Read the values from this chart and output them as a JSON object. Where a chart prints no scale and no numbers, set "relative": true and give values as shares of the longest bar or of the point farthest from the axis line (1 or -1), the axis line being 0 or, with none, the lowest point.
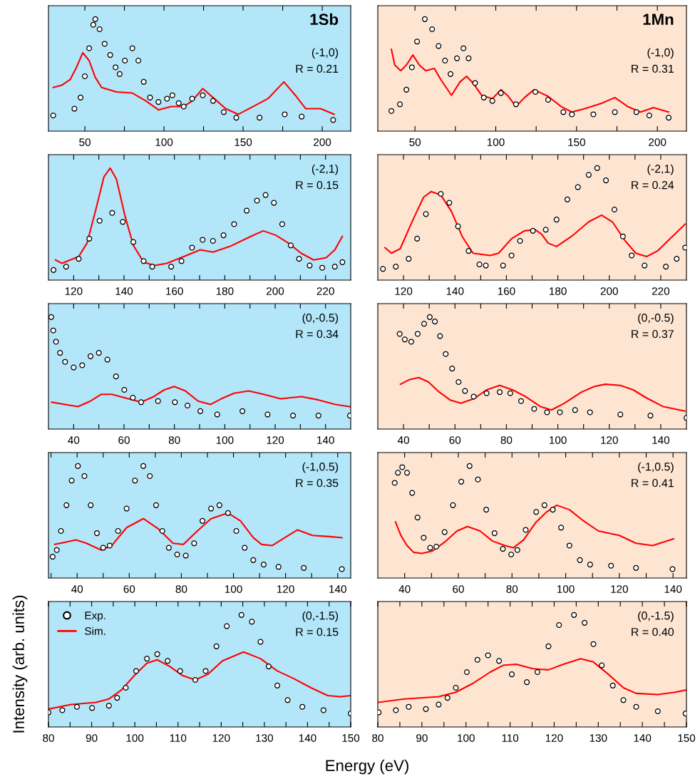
{
  "chart_data": [
    {
      "type": "line",
      "title": "1Sb",
      "annotations": [
        "(-1,0)",
        "R = 0.21"
      ],
      "relative": true,
      "marker": "circle",
      "xlim": [
        27,
        218
      ],
      "xticks": [
        50,
        {
          "value": 75,
          "label": null
        },
        100,
        {
          "value": 125,
          "label": null
        },
        150,
        {
          "value": 175,
          "label": null
        },
        200
      ],
      "series": [
        {
          "type": "scatter",
          "color": "#000000",
          "x": [
            30,
            43.4,
            47.3,
            50,
            52.7,
            55.3,
            56.6,
            59.3,
            62.5,
            66,
            69.4,
            72,
            75.3,
            80,
            83.8,
            87.2,
            91.2,
            96.5,
            101.9,
            105.3,
            109.3,
            112.5,
            117.8,
            124.5,
            131,
            137.8,
            145.7,
            160.4,
            176.3,
            187,
            206.9
          ],
          "values": [
            0.14,
            0.2,
            0.3,
            0.49,
            0.74,
            0.95,
            1.0,
            0.91,
            0.78,
            0.68,
            0.57,
            0.51,
            0.63,
            0.74,
            0.63,
            0.44,
            0.3,
            0.26,
            0.29,
            0.32,
            0.25,
            0.22,
            0.29,
            0.32,
            0.27,
            0.17,
            0.12,
            0.12,
            0.15,
            0.13,
            0.1
          ]
        },
        {
          "marker": "none",
          "color": "#ff0000",
          "x": [
            30,
            35.4,
            40.7,
            44.7,
            48.7,
            52.7,
            56.6,
            60.6,
            70,
            80,
            88.6,
            96.5,
            104.5,
            112.5,
            117.8,
            124.5,
            131,
            139,
            147,
            157.7,
            165.7,
            175.8,
            183,
            189.6,
            199,
            207.5
          ],
          "values": [
            0.39,
            0.41,
            0.46,
            0.57,
            0.7,
            0.63,
            0.48,
            0.39,
            0.35,
            0.34,
            0.27,
            0.19,
            0.22,
            0.22,
            0.27,
            0.38,
            0.3,
            0.2,
            0.15,
            0.23,
            0.29,
            0.44,
            0.32,
            0.2,
            0.2,
            0.15
          ]
        }
      ]
    },
    {
      "type": "line",
      "title": "1Mn",
      "annotations": [
        "(-1,0)",
        "R = 0.31"
      ],
      "relative": true,
      "marker": "circle",
      "xlim": [
        27,
        218
      ],
      "xticks": [
        50,
        {
          "value": 75,
          "label": null
        },
        100,
        {
          "value": 125,
          "label": null
        },
        150,
        {
          "value": 175,
          "label": null
        },
        200
      ],
      "series": [
        {
          "type": "scatter",
          "color": "#000000",
          "x": [
            35.4,
            40.7,
            44.7,
            48.1,
            51.3,
            56.1,
            60.6,
            64.6,
            68.6,
            72,
            76,
            80,
            83.2,
            87.2,
            92.6,
            97.9,
            103.2,
            112.5,
            124.5,
            132.4,
            141.8,
            147.1,
            160.4,
            173.7,
            187,
            195,
            207
          ],
          "values": [
            0.18,
            0.24,
            0.37,
            0.57,
            0.8,
            1.0,
            0.91,
            0.76,
            0.63,
            0.51,
            0.65,
            0.74,
            0.65,
            0.43,
            0.3,
            0.27,
            0.34,
            0.24,
            0.35,
            0.28,
            0.17,
            0.15,
            0.15,
            0.17,
            0.17,
            0.14,
            0.12
          ]
        },
        {
          "marker": "none",
          "color": "#ff0000",
          "x": [
            35.4,
            37.5,
            41.2,
            44.7,
            48.7,
            52.7,
            56.6,
            62,
            66,
            72.6,
            77.9,
            81.9,
            85.9,
            91.2,
            97.9,
            103.2,
            107.2,
            112.5,
            117.8,
            123.7,
            132.4,
            140.4,
            147.1,
            155,
            165.7,
            173.7,
            181.6,
            189.6,
            197.6,
            207
          ],
          "values": [
            0.73,
            0.59,
            0.54,
            0.59,
            0.68,
            0.59,
            0.54,
            0.56,
            0.46,
            0.32,
            0.44,
            0.49,
            0.43,
            0.32,
            0.29,
            0.37,
            0.32,
            0.22,
            0.3,
            0.37,
            0.31,
            0.22,
            0.17,
            0.2,
            0.25,
            0.3,
            0.22,
            0.17,
            0.21,
            0.17
          ]
        }
      ]
    },
    {
      "type": "line",
      "annotations": [
        "(-2,1)",
        "R = 0.15"
      ],
      "relative": true,
      "marker": "circle",
      "xlim": [
        110,
        230
      ],
      "xticks": [
        120,
        {
          "value": 130,
          "label": null
        },
        140,
        {
          "value": 150,
          "label": null
        },
        160,
        {
          "value": 170,
          "label": null
        },
        180,
        {
          "value": 190,
          "label": null
        },
        200,
        {
          "value": 210,
          "label": null
        },
        220
      ],
      "series": [
        {
          "type": "scatter",
          "color": "#000000",
          "x": [
            112,
            117,
            122,
            126.2,
            130.3,
            135.3,
            139.5,
            143.7,
            147.8,
            151.2,
            158.7,
            162.8,
            167,
            171.2,
            175.3,
            179.5,
            183.7,
            188.7,
            192.8,
            196.2,
            199.5,
            202.8,
            206.2,
            209.5,
            213.7,
            218.7,
            223.7,
            226.7
          ],
          "values": [
            0.09,
            0.12,
            0.19,
            0.37,
            0.53,
            0.6,
            0.52,
            0.34,
            0.17,
            0.12,
            0.12,
            0.17,
            0.29,
            0.36,
            0.35,
            0.4,
            0.5,
            0.62,
            0.71,
            0.76,
            0.69,
            0.5,
            0.31,
            0.19,
            0.13,
            0.11,
            0.12,
            0.16
          ]
        },
        {
          "marker": "none",
          "color": "#ff0000",
          "x": [
            112.8,
            115.3,
            122,
            125.3,
            128.7,
            132,
            134.5,
            137,
            140.3,
            143.7,
            147.8,
            152,
            157,
            163.7,
            170.3,
            175.3,
            182,
            190.3,
            195.3,
            200.3,
            205.3,
            210.3,
            215.3,
            220.3,
            223.7,
            226.7
          ],
          "values": [
            0.18,
            0.15,
            0.21,
            0.33,
            0.62,
            0.92,
            1.0,
            0.9,
            0.58,
            0.31,
            0.16,
            0.13,
            0.15,
            0.21,
            0.27,
            0.25,
            0.3,
            0.39,
            0.44,
            0.4,
            0.33,
            0.24,
            0.18,
            0.2,
            0.27,
            0.39
          ]
        }
      ]
    },
    {
      "type": "line",
      "annotations": [
        "(-2,1)",
        "R = 0.24"
      ],
      "relative": true,
      "marker": "circle",
      "xlim": [
        110,
        230
      ],
      "xticks": [
        120,
        {
          "value": 130,
          "label": null
        },
        140,
        {
          "value": 150,
          "label": null
        },
        160,
        {
          "value": 170,
          "label": null
        },
        180,
        {
          "value": 190,
          "label": null
        },
        200,
        {
          "value": 210,
          "label": null
        },
        220
      ],
      "series": [
        {
          "type": "scatter",
          "color": "#000000",
          "x": [
            112,
            117,
            122,
            125.3,
            128.7,
            134.5,
            137.8,
            141.2,
            145.3,
            149.5,
            152,
            158.7,
            162,
            165.3,
            170.3,
            175.3,
            179.5,
            183.7,
            187.8,
            192,
            195.3,
            198.7,
            202,
            205.3,
            208.7,
            213.7,
            222,
            226.2,
            229.5
          ],
          "values": [
            0.1,
            0.12,
            0.19,
            0.37,
            0.59,
            0.77,
            0.69,
            0.48,
            0.26,
            0.14,
            0.13,
            0.13,
            0.22,
            0.35,
            0.44,
            0.45,
            0.54,
            0.72,
            0.83,
            0.94,
            1.0,
            0.89,
            0.63,
            0.39,
            0.22,
            0.13,
            0.12,
            0.19,
            0.29
          ]
        },
        {
          "marker": "none",
          "color": "#ff0000",
          "x": [
            112.8,
            115.3,
            118.7,
            123.7,
            127.8,
            130.7,
            134.5,
            138.7,
            142.8,
            147,
            153.7,
            157,
            162,
            167,
            171.2,
            173.7,
            176.2,
            179.5,
            185.3,
            192,
            197,
            201.2,
            206.2,
            210.3,
            214.5,
            218.7,
            223.7,
            229.5
          ],
          "values": [
            0.29,
            0.24,
            0.28,
            0.54,
            0.74,
            0.79,
            0.76,
            0.61,
            0.39,
            0.24,
            0.22,
            0.24,
            0.37,
            0.44,
            0.45,
            0.41,
            0.33,
            0.3,
            0.39,
            0.52,
            0.58,
            0.52,
            0.35,
            0.24,
            0.21,
            0.26,
            0.37,
            0.5
          ]
        }
      ]
    },
    {
      "type": "line",
      "annotations": [
        "(0,-0.5)",
        "R = 0.34"
      ],
      "relative": true,
      "marker": "circle",
      "xlim": [
        30,
        150
      ],
      "xticks": [
        40,
        {
          "value": 50,
          "label": null
        },
        60,
        {
          "value": 70,
          "label": null
        },
        80,
        {
          "value": 90,
          "label": null
        },
        100,
        {
          "value": 110,
          "label": null
        },
        120,
        {
          "value": 130,
          "label": null
        },
        140
      ],
      "series": [
        {
          "type": "scatter",
          "color": "#000000",
          "x": [
            31.1,
            31.9,
            33,
            34.6,
            36.6,
            40,
            43.4,
            46.7,
            50,
            53.4,
            56.8,
            60.1,
            63.5,
            66.8,
            73.5,
            80.2,
            85.2,
            90.3,
            97,
            107,
            117,
            127.1,
            137.2,
            149.7
          ],
          "values": [
            1.0,
            0.88,
            0.78,
            0.68,
            0.6,
            0.55,
            0.57,
            0.65,
            0.68,
            0.62,
            0.47,
            0.35,
            0.28,
            0.24,
            0.25,
            0.24,
            0.21,
            0.16,
            0.13,
            0.16,
            0.13,
            0.12,
            0.12,
            0.12
          ]
        },
        {
          "marker": "none",
          "color": "#ff0000",
          "x": [
            31.3,
            36.6,
            41.7,
            46.7,
            50.9,
            55.1,
            60.1,
            66.8,
            71.8,
            76,
            79.9,
            84.4,
            89.4,
            94.4,
            98.6,
            103.7,
            109.5,
            115.4,
            122.1,
            130.5,
            137.2,
            143.9,
            149.7
          ],
          "values": [
            0.24,
            0.22,
            0.2,
            0.25,
            0.31,
            0.31,
            0.28,
            0.24,
            0.29,
            0.35,
            0.38,
            0.34,
            0.25,
            0.22,
            0.27,
            0.32,
            0.34,
            0.31,
            0.27,
            0.29,
            0.26,
            0.22,
            0.2
          ]
        }
      ]
    },
    {
      "type": "line",
      "annotations": [
        "(0,-0.5)",
        "R = 0.37"
      ],
      "relative": true,
      "marker": "circle",
      "xlim": [
        30,
        150
      ],
      "xticks": [
        40,
        {
          "value": 50,
          "label": null
        },
        60,
        {
          "value": 70,
          "label": null
        },
        80,
        {
          "value": 90,
          "label": null
        },
        100,
        {
          "value": 110,
          "label": null
        },
        120,
        {
          "value": 130,
          "label": null
        },
        140
      ],
      "series": [
        {
          "type": "scatter",
          "color": "#000000",
          "x": [
            38.5,
            40.5,
            43,
            45.5,
            48,
            50.2,
            52.2,
            54.2,
            56.4,
            58.9,
            61.4,
            63.9,
            67.3,
            72.3,
            77.4,
            81.5,
            85.7,
            90.8,
            95.8,
            100.8,
            106.7,
            112.5,
            124.3,
            136,
            150
          ],
          "values": [
            0.85,
            0.8,
            0.78,
            0.85,
            0.94,
            1.0,
            0.96,
            0.83,
            0.67,
            0.54,
            0.42,
            0.34,
            0.29,
            0.32,
            0.33,
            0.32,
            0.25,
            0.18,
            0.15,
            0.15,
            0.17,
            0.15,
            0.13,
            0.12,
            0.1
          ]
        },
        {
          "marker": "none",
          "color": "#ff0000",
          "x": [
            38.8,
            42.2,
            45.9,
            49.7,
            53.9,
            58.1,
            62.3,
            67.3,
            72.3,
            77.4,
            82.4,
            87.4,
            93.3,
            97.5,
            102.5,
            109.2,
            114.2,
            118.4,
            124.3,
            129.3,
            134.3,
            141,
            149.4
          ],
          "values": [
            0.4,
            0.44,
            0.46,
            0.42,
            0.33,
            0.26,
            0.23,
            0.27,
            0.35,
            0.39,
            0.35,
            0.29,
            0.2,
            0.17,
            0.23,
            0.33,
            0.38,
            0.4,
            0.39,
            0.35,
            0.28,
            0.2,
            0.16
          ]
        }
      ]
    },
    {
      "type": "line",
      "annotations": [
        "(-1,0.5)",
        "R = 0.35"
      ],
      "relative": true,
      "marker": "circle",
      "xlim": [
        29,
        145
      ],
      "xticks": [
        {
          "value": 30,
          "label": null
        },
        40,
        {
          "value": 50,
          "label": null
        },
        60,
        {
          "value": 70,
          "label": null
        },
        80,
        {
          "value": 90,
          "label": null
        },
        100,
        {
          "value": 110,
          "label": null
        },
        120,
        {
          "value": 130,
          "label": null
        },
        140
      ],
      "series": [
        {
          "type": "scatter",
          "color": "#000000",
          "x": [
            30.6,
            32.2,
            33.8,
            35.9,
            37.9,
            40.3,
            42.8,
            45.2,
            47.6,
            50,
            52.5,
            55.7,
            59,
            62.2,
            65.4,
            67.9,
            70.3,
            72.7,
            75.2,
            78.4,
            81.7,
            84.9,
            88.1,
            91.4,
            94.6,
            97.9,
            101.1,
            104.3,
            107.6,
            111.6,
            117.3,
            127,
            141.6
          ],
          "values": [
            0.19,
            0.25,
            0.42,
            0.65,
            0.87,
            1.0,
            0.91,
            0.65,
            0.4,
            0.27,
            0.29,
            0.42,
            0.62,
            0.87,
            1.0,
            0.91,
            0.65,
            0.42,
            0.27,
            0.21,
            0.2,
            0.31,
            0.51,
            0.62,
            0.65,
            0.58,
            0.42,
            0.27,
            0.16,
            0.12,
            0.1,
            0.09,
            0.08
          ]
        },
        {
          "marker": "none",
          "color": "#ff0000",
          "x": [
            31.4,
            35.5,
            39.5,
            43.6,
            49.2,
            53.3,
            59,
            65.4,
            71.1,
            76.8,
            80.8,
            85.7,
            91.4,
            97.9,
            102.7,
            107.6,
            110.8,
            114.9,
            119.7,
            124.6,
            130.3,
            136.8,
            141.6
          ],
          "values": [
            0.3,
            0.32,
            0.34,
            0.31,
            0.25,
            0.29,
            0.45,
            0.53,
            0.44,
            0.31,
            0.3,
            0.41,
            0.53,
            0.58,
            0.51,
            0.36,
            0.3,
            0.29,
            0.36,
            0.43,
            0.38,
            0.37,
            0.36
          ]
        }
      ]
    },
    {
      "type": "line",
      "annotations": [
        "(-1,0.5)",
        "R = 0.41"
      ],
      "relative": true,
      "marker": "circle",
      "xlim": [
        30,
        145
      ],
      "xticks": [
        40,
        {
          "value": 50,
          "label": null
        },
        60,
        {
          "value": 70,
          "label": null
        },
        80,
        {
          "value": 90,
          "label": null
        },
        100,
        {
          "value": 110,
          "label": null
        },
        120,
        {
          "value": 130,
          "label": null
        },
        140
      ],
      "series": [
        {
          "type": "scatter",
          "color": "#000000",
          "x": [
            36.3,
            37.5,
            39.1,
            40.9,
            42.8,
            44.8,
            47.1,
            49.5,
            51.8,
            54.9,
            58,
            61.1,
            64.2,
            67.3,
            70.4,
            73.5,
            76.6,
            79.7,
            82,
            85.1,
            89,
            92.1,
            95.2,
            98.3,
            101.4,
            105.3,
            109.1,
            116.9,
            126.2,
            139.8
          ],
          "values": [
            0.85,
            0.94,
            0.99,
            0.94,
            0.76,
            0.54,
            0.36,
            0.27,
            0.28,
            0.41,
            0.65,
            0.86,
            1.0,
            0.88,
            0.61,
            0.4,
            0.26,
            0.21,
            0.25,
            0.43,
            0.59,
            0.65,
            0.61,
            0.45,
            0.29,
            0.16,
            0.12,
            0.11,
            0.09,
            0.08
          ]
        },
        {
          "marker": "none",
          "color": "#ff0000",
          "x": [
            36.6,
            38.6,
            40.9,
            43.3,
            46.4,
            50.2,
            54.9,
            59.5,
            63.4,
            68.1,
            72.7,
            77.4,
            80.5,
            84.3,
            89,
            92.9,
            96.7,
            101.4,
            106.1,
            112.2,
            120,
            126.2,
            132.4,
            140.2
          ],
          "values": [
            0.5,
            0.38,
            0.29,
            0.23,
            0.22,
            0.24,
            0.32,
            0.42,
            0.46,
            0.42,
            0.33,
            0.29,
            0.27,
            0.34,
            0.5,
            0.59,
            0.65,
            0.61,
            0.52,
            0.42,
            0.38,
            0.31,
            0.29,
            0.35
          ]
        }
      ]
    },
    {
      "type": "line",
      "annotations": [
        "(0,-1.5)",
        "R = 0.15"
      ],
      "xlabel": "Energy (eV)",
      "relative": true,
      "marker": "circle",
      "legend": "top left",
      "xlim": [
        80,
        150
      ],
      "xticks": [
        80,
        {
          "value": 85,
          "label": null
        },
        90,
        {
          "value": 95,
          "label": null
        },
        100,
        {
          "value": 105,
          "label": null
        },
        110,
        {
          "value": 115,
          "label": null
        },
        120,
        {
          "value": 125,
          "label": null
        },
        130,
        {
          "value": 135,
          "label": null
        },
        140,
        {
          "value": 145,
          "label": null
        },
        150
      ],
      "series": [
        {
          "type": "scatter",
          "name": "Exp.",
          "color": "#000000",
          "x": [
            80,
            83.2,
            86.6,
            90.1,
            94,
            95.9,
            97.9,
            100.3,
            102.8,
            105.2,
            107.6,
            110.5,
            114,
            116.4,
            118.9,
            121.3,
            124.7,
            127.1,
            129.1,
            131,
            133,
            135.4,
            138.8,
            143.7,
            150
          ],
          "values": [
            0.13,
            0.15,
            0.18,
            0.17,
            0.19,
            0.26,
            0.35,
            0.5,
            0.61,
            0.65,
            0.59,
            0.5,
            0.42,
            0.5,
            0.72,
            0.9,
            1.0,
            0.94,
            0.76,
            0.54,
            0.37,
            0.24,
            0.18,
            0.15,
            0.12
          ]
        },
        {
          "marker": "none",
          "name": "Sim.",
          "color": "#ff0000",
          "x": [
            80,
            85.2,
            91,
            94,
            96.9,
            99.9,
            102.8,
            105.2,
            108.1,
            111,
            114,
            116.9,
            120.3,
            125.2,
            129.1,
            133,
            136.9,
            140.8,
            144.7,
            147.6,
            150
          ],
          "values": [
            0.16,
            0.2,
            0.22,
            0.25,
            0.33,
            0.46,
            0.57,
            0.6,
            0.54,
            0.46,
            0.42,
            0.47,
            0.59,
            0.67,
            0.61,
            0.5,
            0.43,
            0.35,
            0.28,
            0.27,
            0.28
          ]
        }
      ]
    },
    {
      "type": "line",
      "annotations": [
        "(0,-1.5)",
        "R = 0.40"
      ],
      "ylabel": "Intensity (arb. units)",
      "relative": true,
      "marker": "circle",
      "xlim": [
        80,
        150
      ],
      "xticks": [
        80,
        {
          "value": 85,
          "label": null
        },
        90,
        {
          "value": 95,
          "label": null
        },
        100,
        {
          "value": 105,
          "label": null
        },
        110,
        {
          "value": 115,
          "label": null
        },
        120,
        {
          "value": 125,
          "label": null
        },
        130,
        {
          "value": 135,
          "label": null
        },
        140,
        {
          "value": 145,
          "label": null
        },
        150
      ],
      "series": [
        {
          "type": "scatter",
          "color": "#000000",
          "x": [
            80.2,
            84.1,
            87,
            90.9,
            93.8,
            95.8,
            97.7,
            100.2,
            102.6,
            105,
            107.5,
            110.4,
            113.8,
            116.2,
            118.7,
            121.1,
            124.5,
            126.9,
            128.9,
            130.8,
            133.3,
            135.7,
            138.6,
            143.5,
            149.8
          ],
          "values": [
            0.13,
            0.15,
            0.18,
            0.16,
            0.2,
            0.26,
            0.35,
            0.49,
            0.6,
            0.64,
            0.59,
            0.47,
            0.4,
            0.49,
            0.72,
            0.91,
            1.0,
            0.93,
            0.74,
            0.55,
            0.37,
            0.24,
            0.18,
            0.14,
            0.12
          ]
        },
        {
          "marker": "none",
          "color": "#ff0000",
          "x": [
            80.2,
            86,
            93.8,
            97.7,
            101.6,
            105.5,
            108.4,
            111.4,
            115.2,
            118.7,
            122.1,
            126,
            128.9,
            132.3,
            135.7,
            138.6,
            143.5,
            147.4,
            150
          ],
          "values": [
            0.22,
            0.25,
            0.27,
            0.31,
            0.39,
            0.49,
            0.55,
            0.56,
            0.52,
            0.51,
            0.56,
            0.61,
            0.58,
            0.47,
            0.35,
            0.3,
            0.29,
            0.31,
            0.33
          ]
        }
      ]
    }
  ]
}
